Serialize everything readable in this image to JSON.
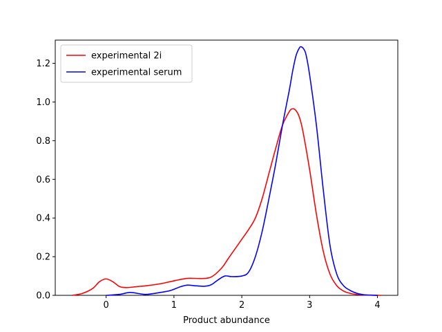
{
  "chart_data": {
    "type": "line",
    "title": "",
    "xlabel": "Product abundance",
    "ylabel": "",
    "xlim": [
      -0.75,
      4.3
    ],
    "ylim": [
      0,
      1.32
    ],
    "xticks": [
      0,
      1,
      2,
      3,
      4
    ],
    "yticks": [
      0.0,
      0.2,
      0.4,
      0.6,
      0.8,
      1.0,
      1.2
    ],
    "xtick_labels": [
      "0",
      "1",
      "2",
      "3",
      "4"
    ],
    "ytick_labels": [
      "0.0",
      "0.2",
      "0.4",
      "0.6",
      "0.8",
      "1.0",
      "1.2"
    ],
    "grid": false,
    "legend_position": "top-left",
    "series": [
      {
        "name": "experimental 2i",
        "color": "#ff0000",
        "x": [
          -0.5,
          -0.35,
          -0.2,
          -0.1,
          0.0,
          0.1,
          0.2,
          0.3,
          0.45,
          0.6,
          0.8,
          1.0,
          1.2,
          1.4,
          1.55,
          1.7,
          1.8,
          1.9,
          2.0,
          2.1,
          2.2,
          2.3,
          2.4,
          2.5,
          2.6,
          2.7,
          2.75,
          2.8,
          2.85,
          2.9,
          3.0,
          3.1,
          3.2,
          3.3,
          3.4,
          3.5,
          3.6,
          3.7,
          3.8,
          3.9,
          4.05
        ],
        "y": [
          0.0,
          0.01,
          0.035,
          0.07,
          0.085,
          0.07,
          0.045,
          0.04,
          0.045,
          0.05,
          0.06,
          0.075,
          0.088,
          0.087,
          0.095,
          0.14,
          0.19,
          0.24,
          0.29,
          0.34,
          0.4,
          0.5,
          0.63,
          0.76,
          0.88,
          0.95,
          0.965,
          0.955,
          0.92,
          0.85,
          0.65,
          0.42,
          0.23,
          0.11,
          0.05,
          0.022,
          0.01,
          0.004,
          0.002,
          0.001,
          0.0
        ]
      },
      {
        "name": "experimental serum",
        "color": "#0000ff",
        "x": [
          0.0,
          0.2,
          0.35,
          0.5,
          0.6,
          0.8,
          0.95,
          1.1,
          1.2,
          1.3,
          1.45,
          1.55,
          1.65,
          1.75,
          1.85,
          2.0,
          2.1,
          2.2,
          2.3,
          2.4,
          2.5,
          2.6,
          2.7,
          2.75,
          2.8,
          2.85,
          2.88,
          2.92,
          2.95,
          3.0,
          3.1,
          3.2,
          3.3,
          3.4,
          3.5,
          3.6,
          3.7,
          3.8,
          3.9,
          4.0
        ],
        "y": [
          0.0,
          0.005,
          0.015,
          0.008,
          0.005,
          0.015,
          0.025,
          0.045,
          0.053,
          0.05,
          0.047,
          0.055,
          0.08,
          0.1,
          0.097,
          0.1,
          0.12,
          0.2,
          0.33,
          0.5,
          0.68,
          0.88,
          1.06,
          1.16,
          1.24,
          1.28,
          1.285,
          1.27,
          1.24,
          1.14,
          0.88,
          0.55,
          0.26,
          0.11,
          0.05,
          0.025,
          0.01,
          0.003,
          0.001,
          0.0
        ]
      }
    ]
  }
}
